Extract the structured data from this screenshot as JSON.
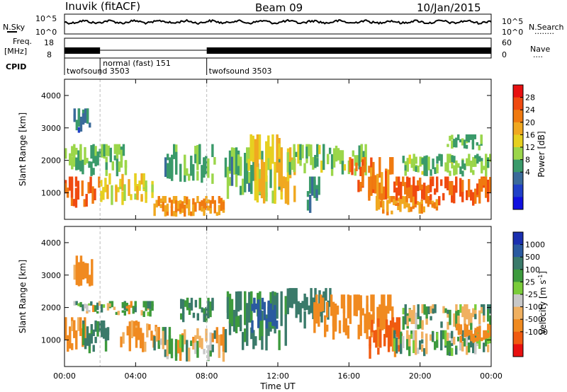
{
  "header": {
    "station": "Inuvik (fitACF)",
    "beam": "Beam 09",
    "date": "10/Jan/2015"
  },
  "strip_labels": {
    "nsky": "N.Sky",
    "nsearch": "N.Search",
    "nsearch_marker": "........",
    "freq_line1": "Freq.",
    "freq_line2": "[MHz]",
    "nave": "Nave",
    "nave_marker": "....",
    "cpid": "CPID",
    "noise_ticks_left": [
      "10^5",
      "10^0"
    ],
    "noise_ticks_right": [
      "10^5",
      "10^0"
    ],
    "freq_ticks": [
      "18",
      "8"
    ],
    "nave_ticks": [
      "60",
      "0"
    ]
  },
  "cpid_segments": [
    {
      "label": "twofsound 3503",
      "start_hour": 0.0,
      "end_hour": 2.0
    },
    {
      "label": "normal (fast) 151",
      "start_hour": 2.0,
      "end_hour": 8.0
    },
    {
      "label": "twofsound 3503",
      "start_hour": 8.0,
      "end_hour": 24.0
    }
  ],
  "x_axis": {
    "title": "Time UT",
    "range_hours": [
      0,
      24
    ],
    "tick_labels": [
      "00:00",
      "04:00",
      "08:00",
      "12:00",
      "16:00",
      "20:00",
      "00:00"
    ]
  },
  "chart_data": [
    {
      "type": "heatmap",
      "title": "",
      "xlabel": "Time UT",
      "ylabel": "Slant Range [km]",
      "xlim_hours": [
        0,
        24
      ],
      "ylim": [
        180,
        4500
      ],
      "y_ticks": [
        1000,
        2000,
        3000,
        4000
      ],
      "colorbar": {
        "label": "Power [dB]",
        "tick_labels": [
          "28",
          "24",
          "20",
          "16",
          "12",
          "8",
          "4"
        ],
        "colors": [
          "#e81010",
          "#f04a10",
          "#f07a10",
          "#f0a820",
          "#e6d020",
          "#9bd64a",
          "#3a9a6a",
          "#3a6a9a",
          "#2040c8",
          "#1010e0"
        ]
      },
      "regions": [
        {
          "t": [
            0.0,
            2.0
          ],
          "r": [
            500,
            1500
          ],
          "value": 26
        },
        {
          "t": [
            0.0,
            3.5
          ],
          "r": [
            1500,
            2500
          ],
          "value": 13
        },
        {
          "t": [
            0.5,
            1.6
          ],
          "r": [
            2700,
            3600
          ],
          "value": 8
        },
        {
          "t": [
            2.0,
            5.0
          ],
          "r": [
            600,
            1600
          ],
          "value": 18
        },
        {
          "t": [
            5.0,
            9.0
          ],
          "r": [
            250,
            900
          ],
          "value": 22
        },
        {
          "t": [
            5.5,
            8.5
          ],
          "r": [
            1200,
            2500
          ],
          "value": 12
        },
        {
          "t": [
            9.0,
            12.5
          ],
          "r": [
            600,
            2400
          ],
          "value": 12
        },
        {
          "t": [
            10.3,
            13.0
          ],
          "r": [
            600,
            2800
          ],
          "value": 20
        },
        {
          "t": [
            12.5,
            17.0
          ],
          "r": [
            1500,
            2500
          ],
          "value": 14
        },
        {
          "t": [
            13.5,
            14.5
          ],
          "r": [
            300,
            1500
          ],
          "value": 10
        },
        {
          "t": [
            16.0,
            18.5
          ],
          "r": [
            700,
            2100
          ],
          "value": 24
        },
        {
          "t": [
            17.5,
            21.0
          ],
          "r": [
            300,
            900
          ],
          "value": 22
        },
        {
          "t": [
            18.5,
            24.0
          ],
          "r": [
            600,
            1500
          ],
          "value": 26
        },
        {
          "t": [
            19.0,
            24.0
          ],
          "r": [
            1500,
            2200
          ],
          "value": 14
        },
        {
          "t": [
            21.5,
            23.5
          ],
          "r": [
            2300,
            2800
          ],
          "value": 12
        }
      ]
    },
    {
      "type": "heatmap",
      "title": "",
      "xlabel": "Time UT",
      "ylabel": "Slant Range [km]",
      "xlim_hours": [
        0,
        24
      ],
      "ylim": [
        180,
        4500
      ],
      "y_ticks": [
        1000,
        2000,
        3000,
        4000
      ],
      "colorbar": {
        "label": "Velocity [m s^-1]",
        "tick_labels": [
          "1000",
          "500",
          "100",
          "25",
          "-25",
          "-100",
          "-500",
          "-1000"
        ],
        "colors": [
          "#1a2fb0",
          "#2a5aa0",
          "#3a7a6a",
          "#3d9a3d",
          "#7acc3a",
          "#c8c8c8",
          "#f0b060",
          "#f08a20",
          "#f05a10",
          "#e81010"
        ]
      },
      "regions": [
        {
          "t": [
            0.0,
            1.2
          ],
          "r": [
            500,
            1700
          ],
          "value": -200
        },
        {
          "t": [
            1.0,
            2.5
          ],
          "r": [
            500,
            1600
          ],
          "value": 150
        },
        {
          "t": [
            0.5,
            2.5
          ],
          "r": [
            1800,
            2200
          ],
          "value": 0
        },
        {
          "t": [
            0.5,
            1.6
          ],
          "r": [
            2600,
            3600
          ],
          "value": -200
        },
        {
          "t": [
            2.5,
            5.0
          ],
          "r": [
            1700,
            2200
          ],
          "value": 0
        },
        {
          "t": [
            3.0,
            5.2
          ],
          "r": [
            600,
            1600
          ],
          "value": -150
        },
        {
          "t": [
            5.0,
            9.0
          ],
          "r": [
            300,
            1400
          ],
          "value": 0
        },
        {
          "t": [
            6.5,
            8.5
          ],
          "r": [
            1500,
            2300
          ],
          "value": 150
        },
        {
          "t": [
            9.0,
            12.5
          ],
          "r": [
            600,
            2500
          ],
          "value": 150
        },
        {
          "t": [
            10.5,
            12.0
          ],
          "r": [
            1200,
            2300
          ],
          "value": 700
        },
        {
          "t": [
            12.5,
            15.0
          ],
          "r": [
            1300,
            2600
          ],
          "value": 300
        },
        {
          "t": [
            14.0,
            18.5
          ],
          "r": [
            1000,
            2400
          ],
          "value": -300
        },
        {
          "t": [
            17.0,
            19.0
          ],
          "r": [
            400,
            1700
          ],
          "value": -600
        },
        {
          "t": [
            18.5,
            24.0
          ],
          "r": [
            500,
            1300
          ],
          "value": 50
        },
        {
          "t": [
            19.0,
            24.0
          ],
          "r": [
            1300,
            2100
          ],
          "value": 30
        },
        {
          "t": [
            22.0,
            24.0
          ],
          "r": [
            900,
            1500
          ],
          "value": -300
        }
      ]
    }
  ]
}
